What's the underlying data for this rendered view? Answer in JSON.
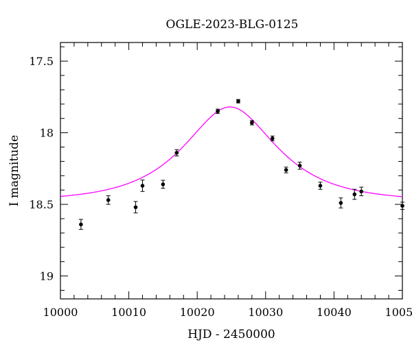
{
  "chart_data": {
    "type": "scatter",
    "title": "OGLE-2023-BLG-0125",
    "xlabel": "HJD - 2450000",
    "ylabel": "I magnitude",
    "xlim": [
      10000,
      10050
    ],
    "ylim": [
      19.16,
      17.37
    ],
    "y_inverted": true,
    "x_ticks": [
      10000,
      10010,
      10020,
      10030,
      10040,
      10050
    ],
    "x_tick_labels": [
      "10000",
      "10010",
      "10020",
      "10030",
      "10040",
      "10050"
    ],
    "y_ticks": [
      17.5,
      18,
      18.5,
      19
    ],
    "y_tick_labels": [
      "17.5",
      "18",
      "18.5",
      "19"
    ],
    "x_minor_step": 2,
    "y_minor_step": 0.1,
    "grid": false,
    "series": [
      {
        "kind": "points",
        "color": "#000000",
        "points": [
          {
            "x": 10003,
            "y": 18.64,
            "err": 0.035
          },
          {
            "x": 10007,
            "y": 18.47,
            "err": 0.03
          },
          {
            "x": 10011,
            "y": 18.52,
            "err": 0.04
          },
          {
            "x": 10012,
            "y": 18.37,
            "err": 0.04
          },
          {
            "x": 10015,
            "y": 18.36,
            "err": 0.028
          },
          {
            "x": 10017,
            "y": 18.14,
            "err": 0.022
          },
          {
            "x": 10023,
            "y": 17.85,
            "err": 0.015
          },
          {
            "x": 10026,
            "y": 17.78,
            "err": 0.012
          },
          {
            "x": 10028,
            "y": 17.93,
            "err": 0.015
          },
          {
            "x": 10031,
            "y": 18.04,
            "err": 0.017
          },
          {
            "x": 10033,
            "y": 18.26,
            "err": 0.02
          },
          {
            "x": 10035,
            "y": 18.23,
            "err": 0.025
          },
          {
            "x": 10038,
            "y": 18.37,
            "err": 0.025
          },
          {
            "x": 10041,
            "y": 18.49,
            "err": 0.035
          },
          {
            "x": 10043,
            "y": 18.43,
            "err": 0.035
          },
          {
            "x": 10044,
            "y": 18.41,
            "err": 0.03
          },
          {
            "x": 10050,
            "y": 18.51,
            "err": 0.025
          }
        ]
      },
      {
        "kind": "model",
        "color": "#ff00ff",
        "model": {
          "type": "paczynski",
          "t0": 10024.8,
          "tE": 10.5,
          "u0": 0.62,
          "baseline": 18.48
        }
      }
    ]
  }
}
